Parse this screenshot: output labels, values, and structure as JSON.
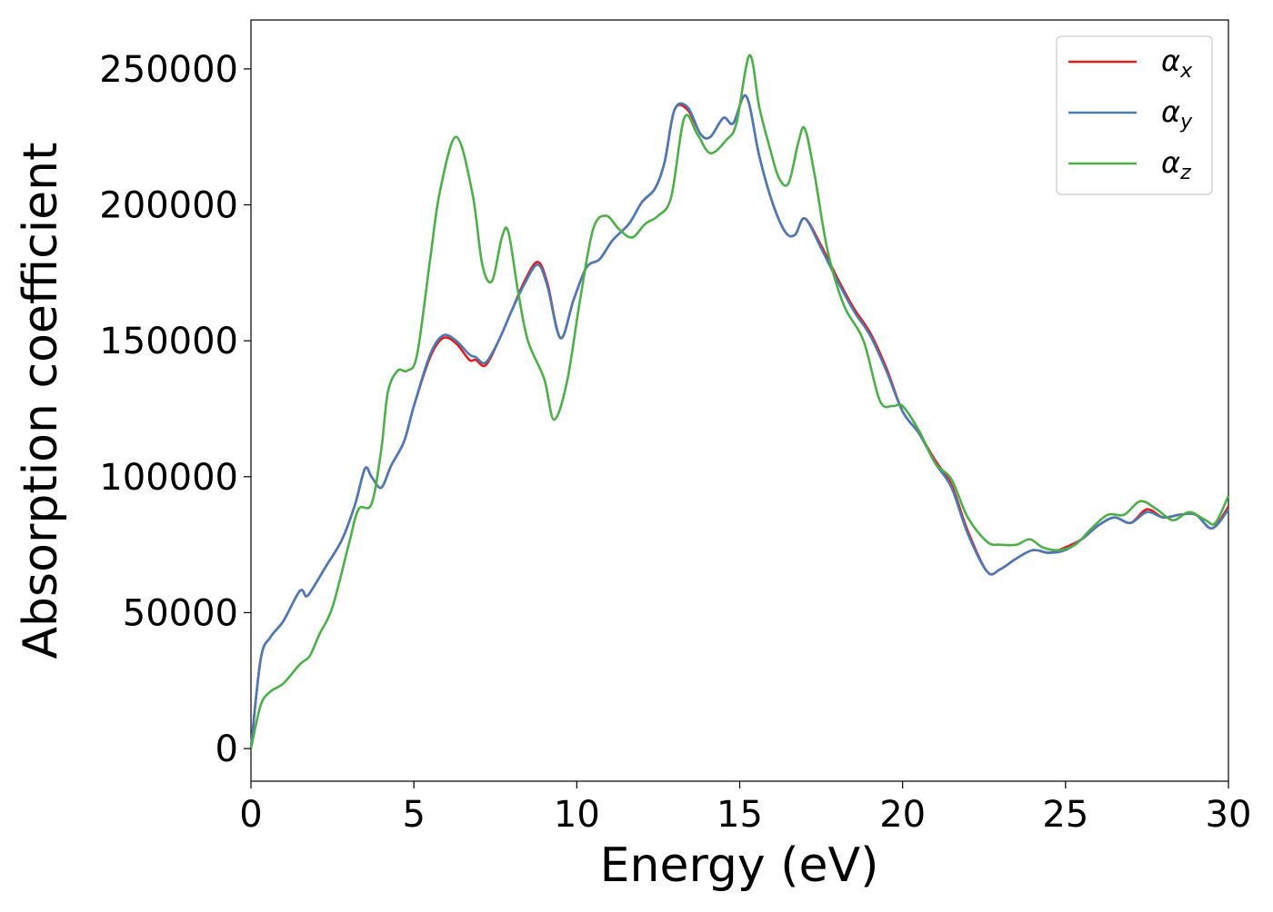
{
  "chart_data": {
    "type": "line",
    "title": "",
    "xlabel": "Energy (eV)",
    "ylabel": "Absorption coefficient",
    "xlim": [
      0,
      30
    ],
    "ylim": [
      -12000,
      268000
    ],
    "xticks": [
      0,
      5,
      10,
      15,
      20,
      25,
      30
    ],
    "xtick_labels": [
      "0",
      "5",
      "10",
      "15",
      "20",
      "25",
      "30"
    ],
    "yticks": [
      0,
      50000,
      100000,
      150000,
      200000,
      250000
    ],
    "ytick_labels": [
      "0",
      "50000",
      "100000",
      "150000",
      "200000",
      "250000"
    ],
    "grid": false,
    "legend_position": "top-right",
    "series": [
      {
        "name": "αx",
        "symbol": "α",
        "subscript": "x",
        "color": "#e41a1c",
        "x": [
          0,
          0.3,
          0.6,
          1.0,
          1.5,
          1.7,
          1.9,
          2.3,
          2.8,
          3.2,
          3.5,
          3.7,
          4.0,
          4.3,
          4.7,
          5.0,
          5.5,
          5.9,
          6.3,
          6.7,
          6.9,
          7.2,
          7.6,
          8.0,
          8.4,
          8.8,
          9.1,
          9.5,
          9.9,
          10.3,
          10.7,
          11.1,
          11.6,
          12.0,
          12.4,
          12.7,
          13.0,
          13.4,
          13.8,
          14.1,
          14.5,
          14.8,
          15.2,
          15.6,
          16.0,
          16.4,
          16.7,
          17.0,
          17.5,
          18.0,
          18.5,
          19.0,
          19.5,
          20.0,
          20.5,
          21.0,
          21.5,
          22.0,
          22.6,
          23.0,
          23.5,
          24.0,
          24.5,
          25.0,
          25.5,
          26.0,
          26.5,
          27.0,
          27.5,
          28.0,
          28.5,
          29.0,
          29.5,
          30.0
        ],
        "y": [
          0,
          33000,
          41000,
          47000,
          58000,
          56000,
          59000,
          67000,
          77000,
          90000,
          103000,
          100000,
          96000,
          104000,
          113000,
          126000,
          144000,
          151000,
          149000,
          143000,
          143000,
          141000,
          150000,
          161000,
          172000,
          179000,
          171000,
          151000,
          165000,
          177000,
          180000,
          187000,
          193000,
          201000,
          206000,
          216000,
          235000,
          235000,
          226000,
          225000,
          232000,
          230000,
          240000,
          218000,
          201000,
          190000,
          189000,
          195000,
          185000,
          173000,
          162000,
          153000,
          140000,
          124000,
          116000,
          106000,
          97000,
          80000,
          65000,
          66000,
          70000,
          73000,
          72000,
          74000,
          77000,
          82000,
          85000,
          83000,
          88000,
          85000,
          86000,
          86000,
          81000,
          89000
        ]
      },
      {
        "name": "αy",
        "symbol": "α",
        "subscript": "y",
        "color": "#4a7bb5",
        "x": [
          0,
          0.3,
          0.6,
          1.0,
          1.5,
          1.7,
          1.9,
          2.3,
          2.8,
          3.2,
          3.5,
          3.7,
          4.0,
          4.3,
          4.7,
          5.0,
          5.5,
          5.9,
          6.3,
          6.7,
          6.9,
          7.2,
          7.6,
          8.0,
          8.4,
          8.8,
          9.1,
          9.5,
          9.9,
          10.3,
          10.7,
          11.1,
          11.6,
          12.0,
          12.4,
          12.7,
          13.0,
          13.4,
          13.8,
          14.1,
          14.5,
          14.8,
          15.2,
          15.6,
          16.0,
          16.4,
          16.7,
          17.0,
          17.5,
          18.0,
          18.5,
          19.0,
          19.5,
          20.0,
          20.5,
          21.0,
          21.5,
          22.0,
          22.6,
          23.0,
          23.5,
          24.0,
          24.5,
          25.0,
          25.5,
          26.0,
          26.5,
          27.0,
          27.5,
          28.0,
          28.5,
          29.0,
          29.5,
          30.0
        ],
        "y": [
          0,
          33000,
          41000,
          47000,
          58000,
          56000,
          59000,
          67000,
          77000,
          90000,
          103000,
          100000,
          96000,
          104000,
          113000,
          126000,
          145000,
          152000,
          150000,
          145000,
          144000,
          142000,
          150000,
          161000,
          171000,
          178000,
          170000,
          151000,
          165000,
          177000,
          180000,
          187000,
          193000,
          201000,
          206000,
          216000,
          235000,
          236000,
          226000,
          225000,
          232000,
          230000,
          240000,
          218000,
          201000,
          190000,
          189000,
          195000,
          184000,
          172000,
          161000,
          152000,
          139000,
          124000,
          116000,
          105000,
          96000,
          79000,
          65000,
          66000,
          70000,
          73000,
          72000,
          73000,
          77000,
          82000,
          85000,
          83000,
          87000,
          85000,
          86000,
          86000,
          81000,
          88000
        ]
      },
      {
        "name": "αz",
        "symbol": "α",
        "subscript": "z",
        "color": "#4daf4a",
        "x": [
          0,
          0.3,
          0.6,
          1.0,
          1.5,
          1.8,
          2.1,
          2.5,
          3.0,
          3.3,
          3.7,
          4.0,
          4.2,
          4.5,
          4.8,
          5.1,
          5.5,
          5.8,
          6.3,
          6.8,
          7.1,
          7.4,
          7.7,
          7.9,
          8.2,
          8.5,
          9.0,
          9.3,
          9.7,
          10.1,
          10.5,
          10.9,
          11.3,
          11.7,
          12.1,
          12.5,
          12.9,
          13.3,
          13.7,
          14.1,
          14.6,
          14.9,
          15.3,
          15.6,
          15.9,
          16.2,
          16.5,
          16.8,
          17.0,
          17.3,
          17.7,
          18.2,
          18.8,
          19.3,
          19.7,
          20.0,
          20.5,
          21.0,
          21.5,
          22.0,
          22.6,
          23.0,
          23.5,
          23.9,
          24.3,
          24.8,
          25.3,
          25.8,
          26.3,
          26.8,
          27.3,
          27.8,
          28.3,
          28.8,
          29.3,
          29.6,
          30.0
        ],
        "y": [
          0,
          16000,
          21000,
          24000,
          31000,
          34000,
          42000,
          52000,
          75000,
          88000,
          90000,
          110000,
          131000,
          139000,
          139000,
          145000,
          180000,
          205000,
          225000,
          204000,
          178000,
          172000,
          188000,
          190000,
          168000,
          150000,
          136000,
          121000,
          135000,
          165000,
          191000,
          196000,
          191000,
          188000,
          193000,
          196000,
          203000,
          232000,
          226000,
          219000,
          224000,
          230000,
          255000,
          236000,
          222000,
          210000,
          208000,
          223000,
          228000,
          211000,
          183000,
          163000,
          150000,
          128000,
          126000,
          126000,
          117000,
          105000,
          99000,
          85000,
          76000,
          75000,
          75000,
          77000,
          74000,
          73000,
          75000,
          81000,
          86000,
          86000,
          91000,
          88000,
          84000,
          87000,
          84000,
          83000,
          93000
        ]
      }
    ]
  }
}
